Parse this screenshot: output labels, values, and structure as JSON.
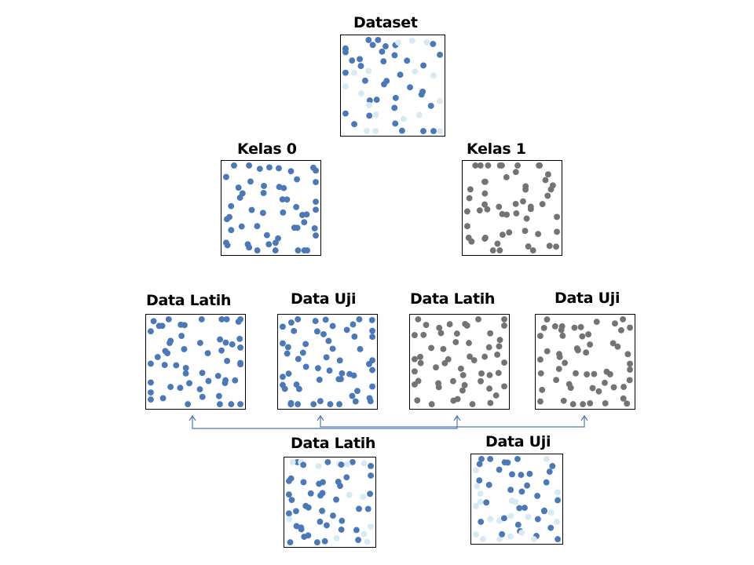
{
  "colors": {
    "class0": "#4a78b8",
    "class1": "#737373",
    "light": "#d6eaf4",
    "link": "#4a78b8"
  },
  "nodes": {
    "dataset": {
      "label": "Dataset"
    },
    "kelas0": {
      "label": "Kelas 0"
    },
    "kelas1": {
      "label": "Kelas 1"
    },
    "k0_latih": {
      "label": "Data Latih"
    },
    "k0_uji": {
      "label": "Data Uji"
    },
    "k1_latih": {
      "label": "Data Latih"
    },
    "k1_uji": {
      "label": "Data Uji"
    },
    "final_latih": {
      "label": "Data Latih"
    },
    "final_uji": {
      "label": "Data Uji"
    }
  }
}
